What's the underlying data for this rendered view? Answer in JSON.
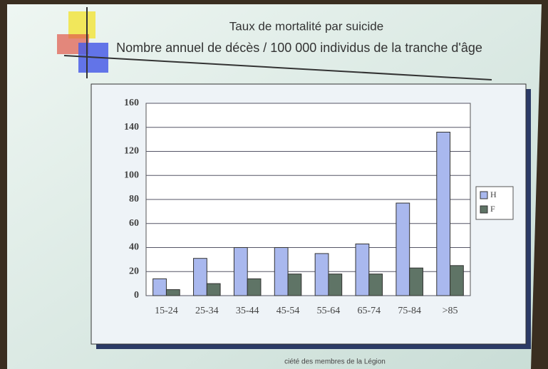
{
  "chart_data": {
    "type": "bar",
    "title": "Taux de mortalité par suicide",
    "subtitle": "Nombre annuel de décès / 100 000 individus de la tranche d'âge",
    "footer": "ciété des membres de la Légion",
    "categories": [
      "15-24",
      "25-34",
      "35-44",
      "45-54",
      "55-64",
      "65-74",
      "75-84",
      ">85"
    ],
    "series": [
      {
        "name": "H",
        "color": "#a9b8ee",
        "values": [
          14,
          31,
          40,
          40,
          35,
          43,
          77,
          136
        ]
      },
      {
        "name": "F",
        "color": "#5f7466",
        "values": [
          5,
          10,
          14,
          18,
          18,
          18,
          23,
          25
        ]
      }
    ],
    "ylim": [
      0,
      160
    ],
    "yticks": [
      0,
      20,
      40,
      60,
      80,
      100,
      120,
      140,
      160
    ],
    "grid": true,
    "legend": "right"
  }
}
